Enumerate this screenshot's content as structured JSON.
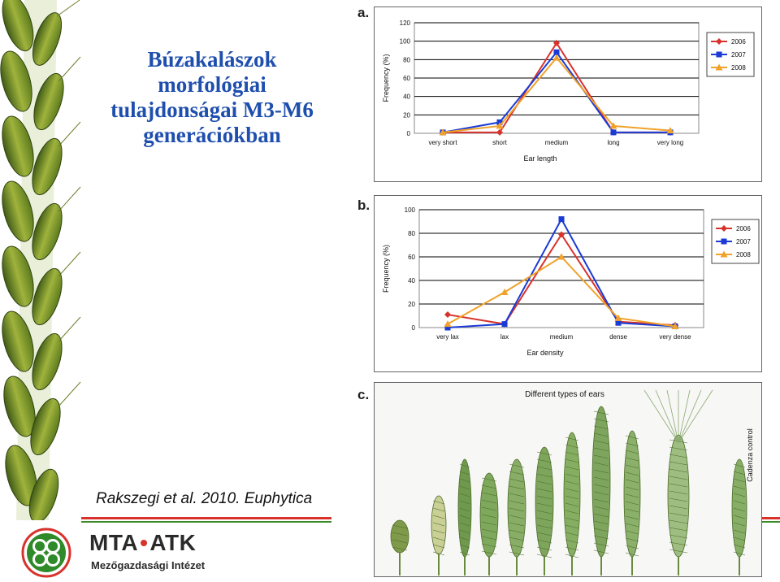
{
  "title": {
    "line1": "Búzakalászok",
    "line2": "morfológiai",
    "line3": "tulajdonságai M3-M6",
    "line4": "generációkban"
  },
  "citation": "Rakszegi et al. 2010. Euphytica",
  "logo": {
    "brand": "MTA",
    "brand2": "ATK",
    "dot": "•",
    "subtitle": "Mezőgazdasági Intézet",
    "icon": "mta-atk-logo-icon"
  },
  "colors": {
    "title": "#1f4fae",
    "s2006": "#d8322c",
    "s2007": "#1a3bd6",
    "s2008": "#f0a22a",
    "rule_red": "#d8322c",
    "rule_green": "#3d8a2b"
  },
  "panels": {
    "a": "a.",
    "b": "b.",
    "c": "c."
  },
  "photo": {
    "title": "Different types of ears",
    "side_label": "Cadenza control"
  },
  "chart_data": [
    {
      "type": "line",
      "categories": [
        "very short",
        "short",
        "medium",
        "long",
        "very long"
      ],
      "series": [
        {
          "name": "2006",
          "values": [
            1,
            1,
            98,
            1,
            1
          ]
        },
        {
          "name": "2007",
          "values": [
            1,
            12,
            88,
            1,
            1
          ]
        },
        {
          "name": "2008",
          "values": [
            1,
            8,
            82,
            8,
            3
          ]
        }
      ],
      "title": "",
      "xlabel": "Ear length",
      "ylabel": "Frequency (%)",
      "ylim": [
        0,
        120
      ],
      "yticks": [
        0,
        20,
        40,
        60,
        80,
        100,
        120
      ],
      "grid": true,
      "legend": "right"
    },
    {
      "type": "line",
      "categories": [
        "very lax",
        "lax",
        "medium",
        "dense",
        "very dense"
      ],
      "series": [
        {
          "name": "2006",
          "values": [
            11,
            3,
            79,
            5,
            2
          ]
        },
        {
          "name": "2007",
          "values": [
            0,
            3,
            92,
            4,
            1
          ]
        },
        {
          "name": "2008",
          "values": [
            3,
            30,
            60,
            8,
            1
          ]
        }
      ],
      "title": "",
      "xlabel": "Ear density",
      "ylabel": "Frequency (%)",
      "ylim": [
        0,
        100
      ],
      "yticks": [
        0,
        20,
        40,
        60,
        80,
        100
      ],
      "grid": true,
      "legend": "right"
    }
  ]
}
